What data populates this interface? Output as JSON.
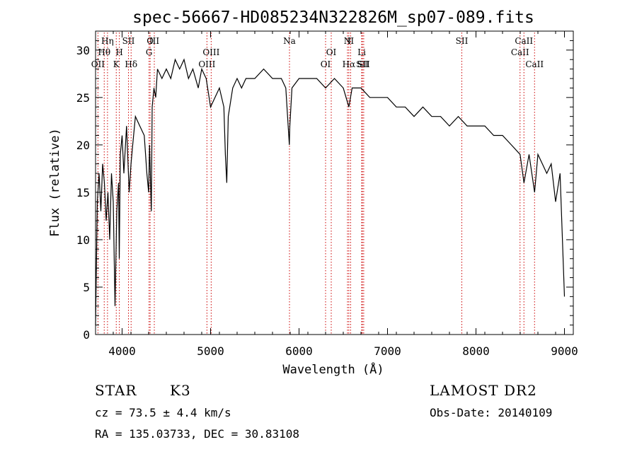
{
  "chart_data": {
    "type": "line",
    "title": "spec-56667-HD085234N322826M_sp07-089.fits",
    "xlabel": "Wavelength (Å)",
    "ylabel": "Flux (relative)",
    "xlim": [
      3700,
      9100
    ],
    "ylim": [
      0,
      32
    ],
    "x_ticks": [
      4000,
      5000,
      6000,
      7000,
      8000,
      9000
    ],
    "y_ticks": [
      0,
      5,
      10,
      15,
      20,
      25,
      30
    ],
    "line_color": "#000000",
    "marker_color": "#cc0000",
    "series": [
      {
        "x": [
          3700,
          3720,
          3740,
          3760,
          3780,
          3800,
          3820,
          3840,
          3860,
          3880,
          3900,
          3920,
          3940,
          3960,
          3968,
          3980,
          4000,
          4020,
          4050,
          4080,
          4101,
          4120,
          4150,
          4200,
          4250,
          4280,
          4300,
          4310,
          4330,
          4340,
          4360,
          4380,
          4400,
          4450,
          4500,
          4550,
          4600,
          4650,
          4700,
          4750,
          4800,
          4861,
          4900,
          4950,
          5000,
          5050,
          5100,
          5150,
          5167,
          5183,
          5200,
          5250,
          5300,
          5350,
          5400,
          5500,
          5600,
          5700,
          5800,
          5850,
          5890,
          5896,
          5920,
          6000,
          6100,
          6200,
          6300,
          6400,
          6500,
          6563,
          6600,
          6700,
          6800,
          6900,
          7000,
          7100,
          7200,
          7300,
          7400,
          7500,
          7600,
          7700,
          7800,
          7900,
          8000,
          8100,
          8200,
          8300,
          8400,
          8498,
          8542,
          8600,
          8662,
          8700,
          8750,
          8800,
          8850,
          8900,
          8950,
          9000
        ],
        "y": [
          1,
          14,
          17,
          13,
          18,
          16,
          12,
          15,
          10,
          17,
          14,
          3,
          13,
          16,
          8,
          19,
          21,
          17,
          22,
          15,
          18,
          20,
          23,
          22,
          21,
          17,
          15,
          20,
          13,
          24,
          26,
          25,
          28,
          27,
          28,
          27,
          29,
          28,
          29,
          27,
          28,
          26,
          28,
          27,
          24,
          25,
          26,
          24,
          19,
          16,
          23,
          26,
          27,
          26,
          27,
          27,
          28,
          27,
          27,
          26,
          20,
          22,
          26,
          27,
          27,
          27,
          26,
          27,
          26,
          24,
          26,
          26,
          25,
          25,
          25,
          24,
          24,
          23,
          24,
          23,
          23,
          22,
          23,
          22,
          22,
          22,
          21,
          21,
          20,
          19,
          16,
          19,
          15,
          19,
          18,
          17,
          18,
          14,
          17,
          4
        ]
      }
    ],
    "line_markers": [
      {
        "label": "OII",
        "x": 3727,
        "row": 2
      },
      {
        "label": "Hθ",
        "x": 3798,
        "row": 1
      },
      {
        "label": "Hη",
        "x": 3835,
        "row": 0
      },
      {
        "label": "K",
        "x": 3934,
        "row": 2
      },
      {
        "label": "H",
        "x": 3969,
        "row": 1
      },
      {
        "label": "SII",
        "x": 4072,
        "row": 0
      },
      {
        "label": "Hδ",
        "x": 4102,
        "row": 2
      },
      {
        "label": "G",
        "x": 4305,
        "row": 1
      },
      {
        "label": "O",
        "x": 4317,
        "row": 0
      },
      {
        "label": "III",
        "x": 4364,
        "row": 0
      },
      {
        "label": "OIII",
        "x": 4959,
        "row": 2
      },
      {
        "label": "OIII",
        "x": 5007,
        "row": 1
      },
      {
        "label": "Na",
        "x": 5892,
        "row": 0
      },
      {
        "label": "OI",
        "x": 6300,
        "row": 2
      },
      {
        "label": "OI",
        "x": 6364,
        "row": 1
      },
      {
        "label": "N",
        "x": 6548,
        "row": 0
      },
      {
        "label": "Hα",
        "x": 6563,
        "row": 2
      },
      {
        "label": "II",
        "x": 6583,
        "row": 0
      },
      {
        "label": "Li",
        "x": 6708,
        "row": 1
      },
      {
        "label": "SII",
        "x": 6716,
        "row": 2
      },
      {
        "label": "SII",
        "x": 6731,
        "row": 2
      },
      {
        "label": "SII",
        "x": 7840,
        "row": 0
      },
      {
        "label": "CaII",
        "x": 8498,
        "row": 1
      },
      {
        "label": "CaII",
        "x": 8542,
        "row": 0
      },
      {
        "label": "CaII",
        "x": 8662,
        "row": 2
      }
    ]
  },
  "info": {
    "object_class": "STAR",
    "subclass": "K3",
    "survey": "LAMOST DR2",
    "cz": "cz = 73.5 ± 4.4 km/s",
    "obs_date": "Obs-Date: 20140109",
    "coords": "RA = 135.03733, DEC =  30.83108"
  }
}
